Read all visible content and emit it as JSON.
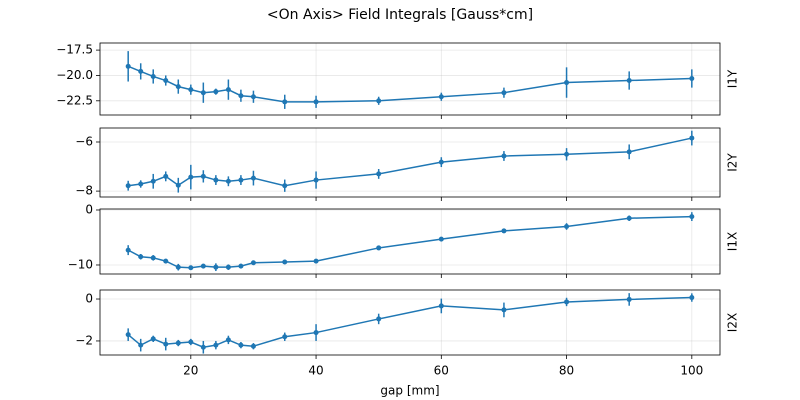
{
  "chart_data": [
    {
      "type": "line",
      "title": "<On Axis> Field Integrals [Gauss*cm]",
      "ylabel": "I1Y",
      "x": [
        10,
        12,
        14,
        16,
        18,
        20,
        22,
        24,
        26,
        28,
        30,
        35,
        40,
        50,
        60,
        70,
        80,
        90,
        100
      ],
      "series": [
        {
          "name": "I1Y",
          "color": "#1f77b4",
          "values": [
            -19.1,
            -19.6,
            -20.1,
            -20.5,
            -21.1,
            -21.4,
            -21.7,
            -21.6,
            -21.4,
            -22.0,
            -22.1,
            -22.6,
            -22.6,
            -22.5,
            -22.1,
            -21.7,
            -20.7,
            -20.5,
            -20.3
          ],
          "errors": [
            1.5,
            0.8,
            0.7,
            0.5,
            0.7,
            0.5,
            1.0,
            0.3,
            1.0,
            0.6,
            0.6,
            0.7,
            0.6,
            0.4,
            0.4,
            0.5,
            1.5,
            0.9,
            0.9
          ]
        }
      ],
      "xlim": [
        5.5,
        104.5
      ],
      "xticks": [
        20,
        40,
        60,
        80,
        100
      ],
      "ylim": [
        -23.9,
        -16.8
      ],
      "yticks": [
        {
          "value": -17.5,
          "label": "−17.5"
        },
        {
          "value": -20,
          "label": "−20.0"
        },
        {
          "value": -22.5,
          "label": "−22.5"
        }
      ],
      "grid": true
    },
    {
      "type": "line",
      "ylabel": "I2Y",
      "x": [
        10,
        12,
        14,
        16,
        18,
        20,
        22,
        24,
        26,
        28,
        30,
        35,
        40,
        50,
        60,
        70,
        80,
        90,
        100
      ],
      "series": [
        {
          "name": "I2Y",
          "color": "#1f77b4",
          "values": [
            -7.78,
            -7.71,
            -7.6,
            -7.4,
            -7.76,
            -7.43,
            -7.4,
            -7.55,
            -7.6,
            -7.55,
            -7.47,
            -7.78,
            -7.55,
            -7.3,
            -6.82,
            -6.57,
            -6.5,
            -6.4,
            -5.84
          ],
          "errors": [
            0.2,
            0.15,
            0.3,
            0.2,
            0.3,
            0.5,
            0.25,
            0.2,
            0.2,
            0.2,
            0.3,
            0.25,
            0.35,
            0.2,
            0.2,
            0.2,
            0.25,
            0.3,
            0.3
          ]
        }
      ],
      "xlim": [
        5.5,
        104.5
      ],
      "xticks": [
        20,
        40,
        60,
        80,
        100
      ],
      "ylim": [
        -8.24,
        -5.43
      ],
      "yticks": [
        {
          "value": -6,
          "label": "−6"
        },
        {
          "value": -8,
          "label": "−8"
        }
      ],
      "grid": true
    },
    {
      "type": "line",
      "ylabel": "I1X",
      "x": [
        10,
        12,
        14,
        16,
        18,
        20,
        22,
        24,
        26,
        28,
        30,
        35,
        40,
        50,
        60,
        70,
        80,
        90,
        100
      ],
      "series": [
        {
          "name": "I1X",
          "color": "#1f77b4",
          "values": [
            -7.3,
            -8.5,
            -8.7,
            -9.3,
            -10.4,
            -10.5,
            -10.2,
            -10.4,
            -10.4,
            -10.2,
            -9.6,
            -9.45,
            -9.3,
            -6.9,
            -5.3,
            -3.8,
            -3.0,
            -1.5,
            -1.2
          ],
          "errors": [
            0.9,
            0.5,
            0.5,
            0.4,
            0.6,
            0.4,
            0.4,
            0.7,
            0.5,
            0.4,
            0.4,
            0.3,
            0.3,
            0.4,
            0.3,
            0.4,
            0.6,
            0.5,
            0.8
          ]
        }
      ],
      "xlim": [
        5.5,
        104.5
      ],
      "xticks": [
        20,
        40,
        60,
        80,
        100
      ],
      "ylim": [
        -11.64,
        0.18
      ],
      "yticks": [
        0,
        {
          "value": -10,
          "label": "−10"
        }
      ],
      "grid": true
    },
    {
      "type": "line",
      "ylabel": "I2X",
      "xlabel": "gap [mm]",
      "x": [
        10,
        12,
        14,
        16,
        18,
        20,
        22,
        24,
        26,
        28,
        30,
        35,
        40,
        50,
        60,
        70,
        80,
        90,
        100
      ],
      "series": [
        {
          "name": "I2X",
          "color": "#1f77b4",
          "values": [
            -1.7,
            -2.2,
            -1.9,
            -2.15,
            -2.1,
            -2.05,
            -2.3,
            -2.2,
            -1.95,
            -2.2,
            -2.25,
            -1.8,
            -1.6,
            -0.95,
            -0.33,
            -0.52,
            -0.14,
            -0.02,
            0.07
          ],
          "errors": [
            0.3,
            0.3,
            0.15,
            0.3,
            0.15,
            0.15,
            0.3,
            0.2,
            0.2,
            0.15,
            0.15,
            0.2,
            0.4,
            0.25,
            0.35,
            0.35,
            0.2,
            0.3,
            0.2
          ]
        }
      ],
      "xlim": [
        5.5,
        104.5
      ],
      "xticks": [
        20,
        40,
        60,
        80,
        100
      ],
      "ylim": [
        -2.67,
        0.43
      ],
      "yticks": [
        0,
        {
          "value": -2,
          "label": "−2"
        }
      ],
      "grid": true
    }
  ]
}
